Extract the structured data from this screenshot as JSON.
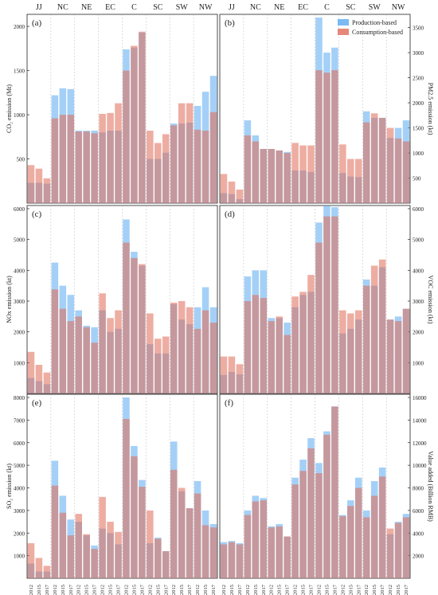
{
  "regions": [
    "JJ",
    "NC",
    "NE",
    "EC",
    "C",
    "SC",
    "SW",
    "NW"
  ],
  "years": [
    "2012",
    "2015",
    "2017"
  ],
  "legend": {
    "production": "Production-based",
    "consumption": "Consumption-based",
    "production_color": "#5aa9f0",
    "consumption_color": "#e06a55"
  },
  "chart_data": [
    {
      "type": "bar",
      "panel": "(a)",
      "ylabel": "CO₂ emission (Mt)",
      "ylim": [
        0,
        2100
      ],
      "yticks": [
        500,
        1000,
        1500,
        2000
      ],
      "categories": [
        "JJ",
        "NC",
        "NE",
        "EC",
        "C",
        "SC",
        "SW",
        "NW"
      ],
      "series": [
        {
          "name": "Production-based",
          "values": [
            [
              230,
              230,
              220
            ],
            [
              1220,
              1300,
              1290
            ],
            [
              820,
              820,
              820
            ],
            [
              800,
              820,
              820
            ],
            [
              1740,
              1760,
              1930
            ],
            [
              500,
              500,
              570
            ],
            [
              900,
              900,
              910
            ],
            [
              1100,
              1260,
              1440
            ]
          ]
        },
        {
          "name": "Consumption-based",
          "values": [
            [
              430,
              390,
              280
            ],
            [
              960,
              1000,
              1000
            ],
            [
              810,
              810,
              790
            ],
            [
              1010,
              1020,
              1130
            ],
            [
              1500,
              1780,
              1940
            ],
            [
              820,
              680,
              780
            ],
            [
              880,
              1130,
              1130
            ],
            [
              830,
              820,
              1030
            ]
          ]
        }
      ]
    },
    {
      "type": "bar",
      "panel": "(b)",
      "ylabel": "PM2.5 emission (kt)",
      "ylim": [
        0,
        3700
      ],
      "yticks": [
        500,
        1000,
        1500,
        2000,
        2500,
        3000,
        3500
      ],
      "categories": [
        "JJ",
        "NC",
        "NE",
        "EC",
        "C",
        "SC",
        "SW",
        "NW"
      ],
      "series": [
        {
          "name": "Production-based",
          "values": [
            [
              200,
              180,
              80
            ],
            [
              1650,
              1350,
              1080
            ],
            [
              1080,
              1050,
              1020
            ],
            [
              650,
              650,
              620
            ],
            [
              3700,
              3000,
              3100
            ],
            [
              600,
              530,
              520
            ],
            [
              1830,
              1700,
              1700
            ],
            [
              1300,
              1500,
              1650
            ]
          ]
        },
        {
          "name": "Consumption-based",
          "values": [
            [
              580,
              430,
              270
            ],
            [
              1350,
              1230,
              1080
            ],
            [
              1080,
              1050,
              1000
            ],
            [
              1200,
              1150,
              1150
            ],
            [
              2650,
              2600,
              2650
            ],
            [
              1170,
              880,
              880
            ],
            [
              1610,
              1790,
              1700
            ],
            [
              1500,
              1290,
              1230
            ]
          ]
        }
      ]
    },
    {
      "type": "bar",
      "panel": "(c)",
      "ylabel": "NOx emission (kt)",
      "ylim": [
        0,
        6000
      ],
      "yticks": [
        1000,
        2000,
        3000,
        4000,
        5000,
        6000
      ],
      "categories": [
        "JJ",
        "NC",
        "NE",
        "EC",
        "C",
        "SC",
        "SW",
        "NW"
      ],
      "series": [
        {
          "name": "Production-based",
          "values": [
            [
              500,
              400,
              300
            ],
            [
              4250,
              3500,
              3200
            ],
            [
              2700,
              2200,
              2150
            ],
            [
              2700,
              2000,
              2100
            ],
            [
              5650,
              4600,
              4150
            ],
            [
              1600,
              1300,
              1300
            ],
            [
              2900,
              2400,
              2250
            ],
            [
              2800,
              3450,
              2800
            ]
          ]
        },
        {
          "name": "Consumption-based",
          "values": [
            [
              1350,
              930,
              680
            ],
            [
              3380,
              2750,
              2350
            ],
            [
              2500,
              2150,
              1650
            ],
            [
              3250,
              2450,
              2700
            ],
            [
              4900,
              4400,
              4200
            ],
            [
              2600,
              1780,
              1850
            ],
            [
              2950,
              3000,
              2800
            ],
            [
              2100,
              2700,
              2300
            ]
          ]
        }
      ]
    },
    {
      "type": "bar",
      "panel": "(d)",
      "ylabel": "VOC emission (kt)",
      "ylim": [
        0,
        6000
      ],
      "yticks": [
        1000,
        2000,
        3000,
        4000,
        5000,
        6000
      ],
      "categories": [
        "JJ",
        "NC",
        "NE",
        "EC",
        "C",
        "SC",
        "SW",
        "NW"
      ],
      "series": [
        {
          "name": "Production-based",
          "values": [
            [
              600,
              700,
              620
            ],
            [
              3800,
              4000,
              4000
            ],
            [
              2450,
              2450,
              2300
            ],
            [
              2800,
              3200,
              3300
            ],
            [
              5550,
              6100,
              6050
            ],
            [
              1950,
              2100,
              2400
            ],
            [
              3700,
              3500,
              4100
            ],
            [
              2400,
              2500,
              2750
            ]
          ]
        },
        {
          "name": "Consumption-based",
          "values": [
            [
              1200,
              1200,
              950
            ],
            [
              3000,
              3200,
              3100
            ],
            [
              2350,
              2500,
              1900
            ],
            [
              3150,
              3300,
              3850
            ],
            [
              4900,
              5750,
              5750
            ],
            [
              2700,
              2600,
              2700
            ],
            [
              3500,
              4150,
              4350
            ],
            [
              2400,
              2350,
              2750
            ]
          ]
        }
      ]
    },
    {
      "type": "bar",
      "panel": "(e)",
      "ylabel": "SO₂ emission (kt)",
      "ylim": [
        0,
        8000
      ],
      "yticks": [
        1000,
        2000,
        3000,
        4000,
        5000,
        6000,
        7000,
        8000
      ],
      "categories": [
        "JJ",
        "NC",
        "NE",
        "EC",
        "C",
        "SC",
        "SW",
        "NW"
      ],
      "series": [
        {
          "name": "Production-based",
          "values": [
            [
              650,
              300,
              300
            ],
            [
              5200,
              3650,
              2600
            ],
            [
              2500,
              1900,
              1450
            ],
            [
              2200,
              2000,
              1500
            ],
            [
              8000,
              5850,
              4350
            ],
            [
              1550,
              1800,
              1200
            ],
            [
              6050,
              3850,
              3100
            ],
            [
              4300,
              3000,
              2400
            ]
          ]
        },
        {
          "name": "Consumption-based",
          "values": [
            [
              1550,
              900,
              550
            ],
            [
              4100,
              2900,
              1900
            ],
            [
              2850,
              1950,
              1300
            ],
            [
              3600,
              2500,
              2050
            ],
            [
              7050,
              5400,
              4050
            ],
            [
              3000,
              1750,
              1200
            ],
            [
              4800,
              4000,
              3100
            ],
            [
              3750,
              2350,
              2250
            ]
          ]
        }
      ]
    },
    {
      "type": "bar",
      "panel": "(f)",
      "ylabel": "Value added (Billion RMB)",
      "ylim": [
        0,
        16000
      ],
      "yticks": [
        2000,
        4000,
        6000,
        8000,
        10000,
        12000,
        14000,
        16000
      ],
      "categories": [
        "JJ",
        "NC",
        "NE",
        "EC",
        "C",
        "SC",
        "SW",
        "NW"
      ],
      "series": [
        {
          "name": "Production-based",
          "values": [
            [
              3200,
              3300,
              3100
            ],
            [
              6000,
              7300,
              7100
            ],
            [
              4600,
              4800,
              3700
            ],
            [
              8900,
              10500,
              12400
            ],
            [
              10200,
              13000,
              15200
            ],
            [
              5600,
              6900,
              8900
            ],
            [
              6000,
              8600,
              9800
            ],
            [
              3900,
              5000,
              5700
            ]
          ]
        },
        {
          "name": "Consumption-based",
          "values": [
            [
              3000,
              3200,
              3000
            ],
            [
              5600,
              6800,
              6900
            ],
            [
              4500,
              4600,
              3700
            ],
            [
              8300,
              9500,
              11500
            ],
            [
              9300,
              12700,
              15200
            ],
            [
              5500,
              6400,
              8000
            ],
            [
              5400,
              7300,
              9000
            ],
            [
              4400,
              4900,
              5400
            ]
          ]
        }
      ]
    }
  ]
}
